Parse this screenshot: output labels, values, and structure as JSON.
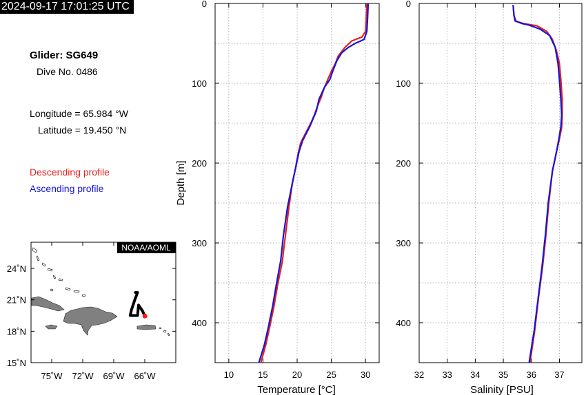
{
  "header": {
    "timestamp": "2024-09-17 17:01:25 UTC"
  },
  "info": {
    "glider": "Glider: SG649",
    "dive": "Dive No. 0486",
    "longitude": "Longitude = 65.984 °W",
    "latitude": "Latitude = 19.450 °N",
    "descending_label": "Descending profile",
    "ascending_label": "Ascending profile"
  },
  "colors": {
    "descending": "#e8211d",
    "ascending": "#1616dc",
    "land": "#808080",
    "track": "#000000",
    "position_marker": "#ff1a1a"
  },
  "map": {
    "badge": "NOAA/AOML",
    "lat_ticks": [
      "24˚N",
      "21˚N",
      "18˚N",
      "15˚N"
    ],
    "lon_ticks": [
      "75˚W",
      "72˚W",
      "69˚W",
      "66˚W"
    ],
    "lat_range": [
      15,
      26.5
    ],
    "lon_range": [
      -77,
      -63
    ],
    "track": [
      [
        -66.9,
        21.7
      ],
      [
        -66.7,
        21.7
      ],
      [
        -67.0,
        20.9
      ],
      [
        -67.3,
        20.0
      ],
      [
        -67.4,
        19.5
      ],
      [
        -66.7,
        19.5
      ],
      [
        -66.6,
        20.5
      ],
      [
        -66.2,
        19.9
      ],
      [
        -66.0,
        19.45
      ]
    ],
    "current_position": [
      -65.984,
      19.45
    ]
  },
  "chart_data": [
    {
      "type": "line",
      "xlabel": "Temperature [°C]",
      "ylabel": "Depth [m]",
      "xlim": [
        8,
        32
      ],
      "ylim": [
        450,
        0
      ],
      "xticks": [
        "10",
        "15",
        "20",
        "25",
        "30"
      ],
      "yticks": [
        "0",
        "100",
        "200",
        "300",
        "400"
      ],
      "grid": true,
      "series": [
        {
          "name": "Descending profile",
          "color": "#e8211d",
          "points": [
            [
              30.2,
              0
            ],
            [
              30.1,
              20
            ],
            [
              30.0,
              35
            ],
            [
              29.5,
              42
            ],
            [
              28.0,
              47
            ],
            [
              27.0,
              55
            ],
            [
              26.0,
              66
            ],
            [
              25.6,
              75
            ],
            [
              25.0,
              85
            ],
            [
              24.5,
              95
            ],
            [
              24.0,
              105
            ],
            [
              23.5,
              118
            ],
            [
              23.0,
              128
            ],
            [
              22.5,
              140
            ],
            [
              22.0,
              150
            ],
            [
              21.2,
              163
            ],
            [
              20.5,
              175
            ],
            [
              20.1,
              190
            ],
            [
              19.8,
              205
            ],
            [
              19.3,
              225
            ],
            [
              18.8,
              255
            ],
            [
              18.3,
              290
            ],
            [
              17.8,
              325
            ],
            [
              17.2,
              350
            ],
            [
              16.6,
              380
            ],
            [
              16.0,
              405
            ],
            [
              15.4,
              428
            ],
            [
              14.7,
              450
            ]
          ]
        },
        {
          "name": "Ascending profile",
          "color": "#1616dc",
          "points": [
            [
              30.4,
              0
            ],
            [
              30.3,
              20
            ],
            [
              30.2,
              35
            ],
            [
              29.8,
              45
            ],
            [
              28.5,
              50
            ],
            [
              27.5,
              55
            ],
            [
              26.5,
              62
            ],
            [
              25.8,
              72
            ],
            [
              25.2,
              85
            ],
            [
              24.8,
              95
            ],
            [
              24.0,
              105
            ],
            [
              23.2,
              120
            ],
            [
              22.8,
              135
            ],
            [
              21.8,
              155
            ],
            [
              20.8,
              172
            ],
            [
              20.3,
              185
            ],
            [
              19.8,
              205
            ],
            [
              19.3,
              225
            ],
            [
              18.6,
              255
            ],
            [
              18.0,
              290
            ],
            [
              17.6,
              322
            ],
            [
              17.0,
              350
            ],
            [
              16.4,
              380
            ],
            [
              15.8,
              405
            ],
            [
              15.2,
              428
            ],
            [
              14.4,
              450
            ]
          ]
        }
      ]
    },
    {
      "type": "line",
      "xlabel": "Salinity [PSU]",
      "ylabel": "",
      "xlim": [
        32,
        37.8
      ],
      "ylim": [
        450,
        0
      ],
      "xticks": [
        "32",
        "33",
        "34",
        "35",
        "36",
        "37"
      ],
      "yticks": [
        "0",
        "100",
        "200",
        "300",
        "400"
      ],
      "grid": true,
      "series": [
        {
          "name": "Descending profile",
          "color": "#e8211d",
          "points": [
            [
              35.35,
              2
            ],
            [
              35.38,
              15
            ],
            [
              35.45,
              22
            ],
            [
              35.7,
              25
            ],
            [
              36.2,
              28
            ],
            [
              36.55,
              35
            ],
            [
              36.75,
              45
            ],
            [
              36.9,
              60
            ],
            [
              37.0,
              75
            ],
            [
              37.05,
              95
            ],
            [
              37.1,
              120
            ],
            [
              37.1,
              140
            ],
            [
              37.08,
              155
            ],
            [
              37.0,
              170
            ],
            [
              36.9,
              185
            ],
            [
              36.75,
              210
            ],
            [
              36.62,
              250
            ],
            [
              36.52,
              290
            ],
            [
              36.4,
              330
            ],
            [
              36.25,
              370
            ],
            [
              36.12,
              410
            ],
            [
              35.95,
              450
            ]
          ]
        },
        {
          "name": "Ascending profile",
          "color": "#1616dc",
          "points": [
            [
              35.35,
              2
            ],
            [
              35.38,
              15
            ],
            [
              35.42,
              22
            ],
            [
              35.65,
              25
            ],
            [
              35.9,
              27
            ],
            [
              36.3,
              32
            ],
            [
              36.65,
              40
            ],
            [
              36.85,
              55
            ],
            [
              36.95,
              75
            ],
            [
              37.0,
              95
            ],
            [
              37.05,
              120
            ],
            [
              37.08,
              140
            ],
            [
              37.05,
              155
            ],
            [
              36.98,
              170
            ],
            [
              36.9,
              185
            ],
            [
              36.75,
              210
            ],
            [
              36.6,
              250
            ],
            [
              36.5,
              290
            ],
            [
              36.38,
              330
            ],
            [
              36.24,
              370
            ],
            [
              36.1,
              410
            ],
            [
              35.92,
              450
            ]
          ]
        }
      ]
    }
  ]
}
